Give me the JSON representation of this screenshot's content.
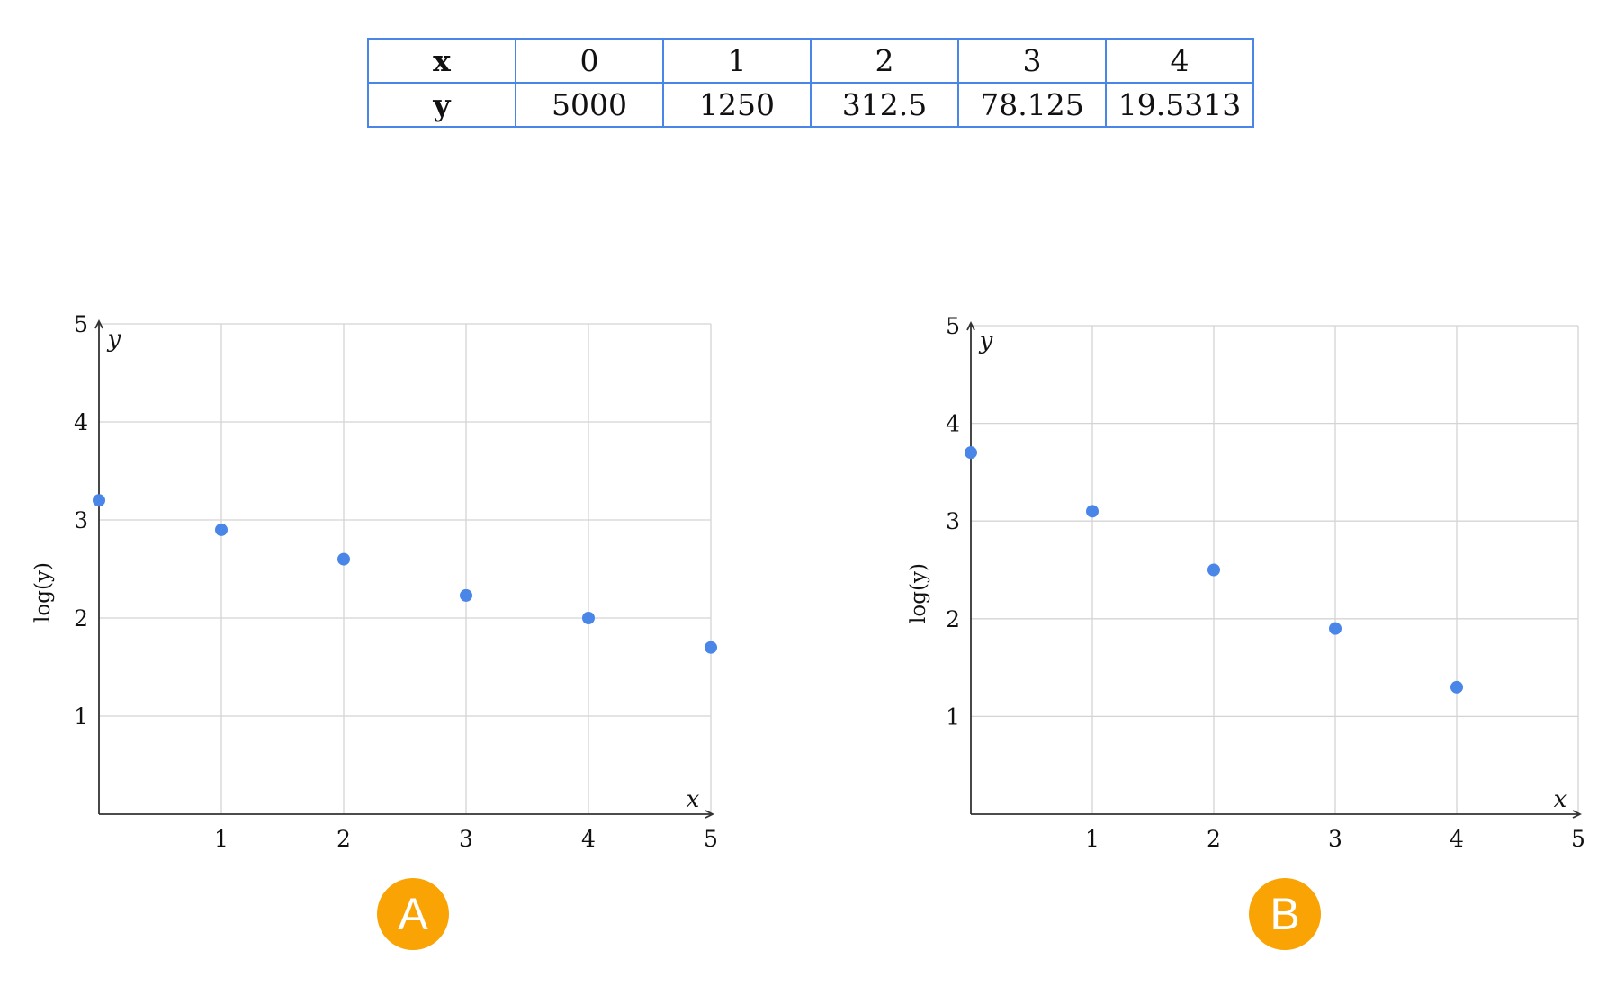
{
  "table": {
    "rows": [
      {
        "header": "x",
        "cells": [
          "0",
          "1",
          "2",
          "3",
          "4"
        ]
      },
      {
        "header": "y",
        "cells": [
          "5000",
          "1250",
          "312.5",
          "78.125",
          "19.5313"
        ]
      }
    ]
  },
  "labels": {
    "a": "A",
    "b": "B"
  },
  "chart_data": [
    {
      "type": "scatter",
      "x_axis_name": "x",
      "y_axis_name": "y",
      "ylabel": "log(y)",
      "xlim": [
        0,
        5
      ],
      "ylim": [
        0,
        5
      ],
      "x_ticks": [
        "1",
        "2",
        "3",
        "4",
        "5"
      ],
      "y_ticks": [
        "1",
        "2",
        "3",
        "4",
        "5"
      ],
      "grid": true,
      "color": "#4a86e8",
      "points": [
        {
          "x": 0,
          "y": 3.2
        },
        {
          "x": 1,
          "y": 2.9
        },
        {
          "x": 2,
          "y": 2.6
        },
        {
          "x": 3,
          "y": 2.23
        },
        {
          "x": 4,
          "y": 2.0
        },
        {
          "x": 5,
          "y": 1.7
        }
      ]
    },
    {
      "type": "scatter",
      "x_axis_name": "x",
      "y_axis_name": "y",
      "ylabel": "log(y)",
      "xlim": [
        0,
        5
      ],
      "ylim": [
        0,
        5
      ],
      "x_ticks": [
        "1",
        "2",
        "3",
        "4",
        "5"
      ],
      "y_ticks": [
        "1",
        "2",
        "3",
        "4",
        "5"
      ],
      "grid": true,
      "color": "#4a86e8",
      "points": [
        {
          "x": 0,
          "y": 3.7
        },
        {
          "x": 1,
          "y": 3.1
        },
        {
          "x": 2,
          "y": 2.5
        },
        {
          "x": 3,
          "y": 1.9
        },
        {
          "x": 4,
          "y": 1.3
        }
      ]
    }
  ]
}
